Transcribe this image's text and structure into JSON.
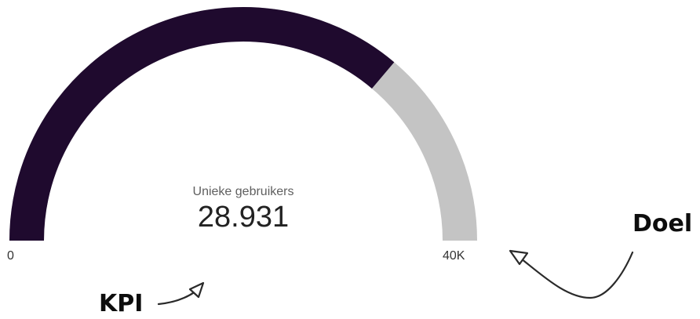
{
  "chart_data": {
    "type": "gauge",
    "metric_label": "Unieke gebruikers",
    "value": 28931,
    "value_display": "28.931",
    "min": 0,
    "max": 40000,
    "min_label": "0",
    "max_label": "40K",
    "colors": {
      "filled": "#1f0a2e",
      "remaining": "#c4c4c4"
    }
  },
  "annotations": {
    "kpi_label": "KPI",
    "goal_label": "Doel"
  }
}
